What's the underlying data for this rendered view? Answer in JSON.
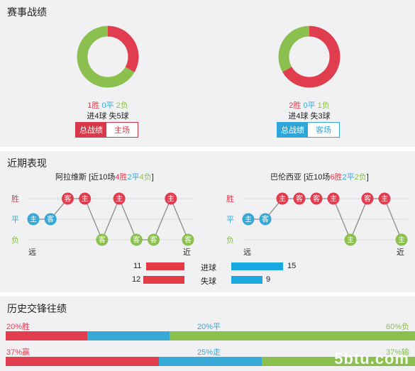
{
  "colors": {
    "win": "#e03e4f",
    "draw": "#36a9d6",
    "loss": "#8bc04f",
    "grid": "#dcdcdc",
    "line": "#8a8a8a"
  },
  "record": {
    "title": "赛事战绩",
    "left": {
      "wins": 1,
      "draws": 0,
      "losses": 2,
      "win_text": "1胜",
      "draw_text": "0平",
      "loss_text": "2负",
      "goals_text": "进4球 失5球",
      "toggle": [
        "总战绩",
        "主场"
      ]
    },
    "right": {
      "wins": 2,
      "draws": 0,
      "losses": 1,
      "win_text": "2胜",
      "draw_text": "0平",
      "loss_text": "1负",
      "goals_text": "进4球 失3球",
      "toggle": [
        "总战绩",
        "客场"
      ]
    }
  },
  "recent": {
    "title": "近期表现",
    "row_labels": [
      "胜",
      "平",
      "负"
    ],
    "axis_far": "远",
    "axis_near": "近",
    "left": {
      "name": "阿拉维斯",
      "summary_pre": "[近10场",
      "summary_w": "4胜",
      "summary_d": "2平",
      "summary_l": "4负",
      "summary_post": "]",
      "matches": [
        {
          "result": "D",
          "venue": "主"
        },
        {
          "result": "D",
          "venue": "客"
        },
        {
          "result": "W",
          "venue": "客"
        },
        {
          "result": "W",
          "venue": "主"
        },
        {
          "result": "L",
          "venue": "客"
        },
        {
          "result": "W",
          "venue": "主"
        },
        {
          "result": "L",
          "venue": "客"
        },
        {
          "result": "L",
          "venue": "客"
        },
        {
          "result": "W",
          "venue": "主"
        },
        {
          "result": "L",
          "venue": "客"
        }
      ]
    },
    "right": {
      "name": "巴伦西亚",
      "summary_pre": "[近10场",
      "summary_w": "6胜",
      "summary_d": "2平",
      "summary_l": "2负",
      "summary_post": "]",
      "matches": [
        {
          "result": "D",
          "venue": "主"
        },
        {
          "result": "D",
          "venue": "客"
        },
        {
          "result": "W",
          "venue": "主"
        },
        {
          "result": "W",
          "venue": "客"
        },
        {
          "result": "W",
          "venue": "客"
        },
        {
          "result": "W",
          "venue": "主"
        },
        {
          "result": "L",
          "venue": "主"
        },
        {
          "result": "W",
          "venue": "客"
        },
        {
          "result": "W",
          "venue": "主"
        },
        {
          "result": "L",
          "venue": "主"
        }
      ]
    },
    "goals": {
      "scored_label": "进球",
      "conceded_label": "失球",
      "left_scored": 11,
      "left_conceded": 12,
      "right_scored": 15,
      "right_conceded": 9,
      "max": 15
    }
  },
  "h2h": {
    "title": "历史交锋往绩",
    "results": {
      "a": "20%胜",
      "b": "20%平",
      "c": "60%负",
      "values": [
        20,
        20,
        60
      ]
    },
    "handicap": {
      "a": "37%赢",
      "b": "25%走",
      "c": "37%输",
      "values": [
        37,
        25,
        37
      ]
    },
    "watermark": "5btu.com"
  }
}
